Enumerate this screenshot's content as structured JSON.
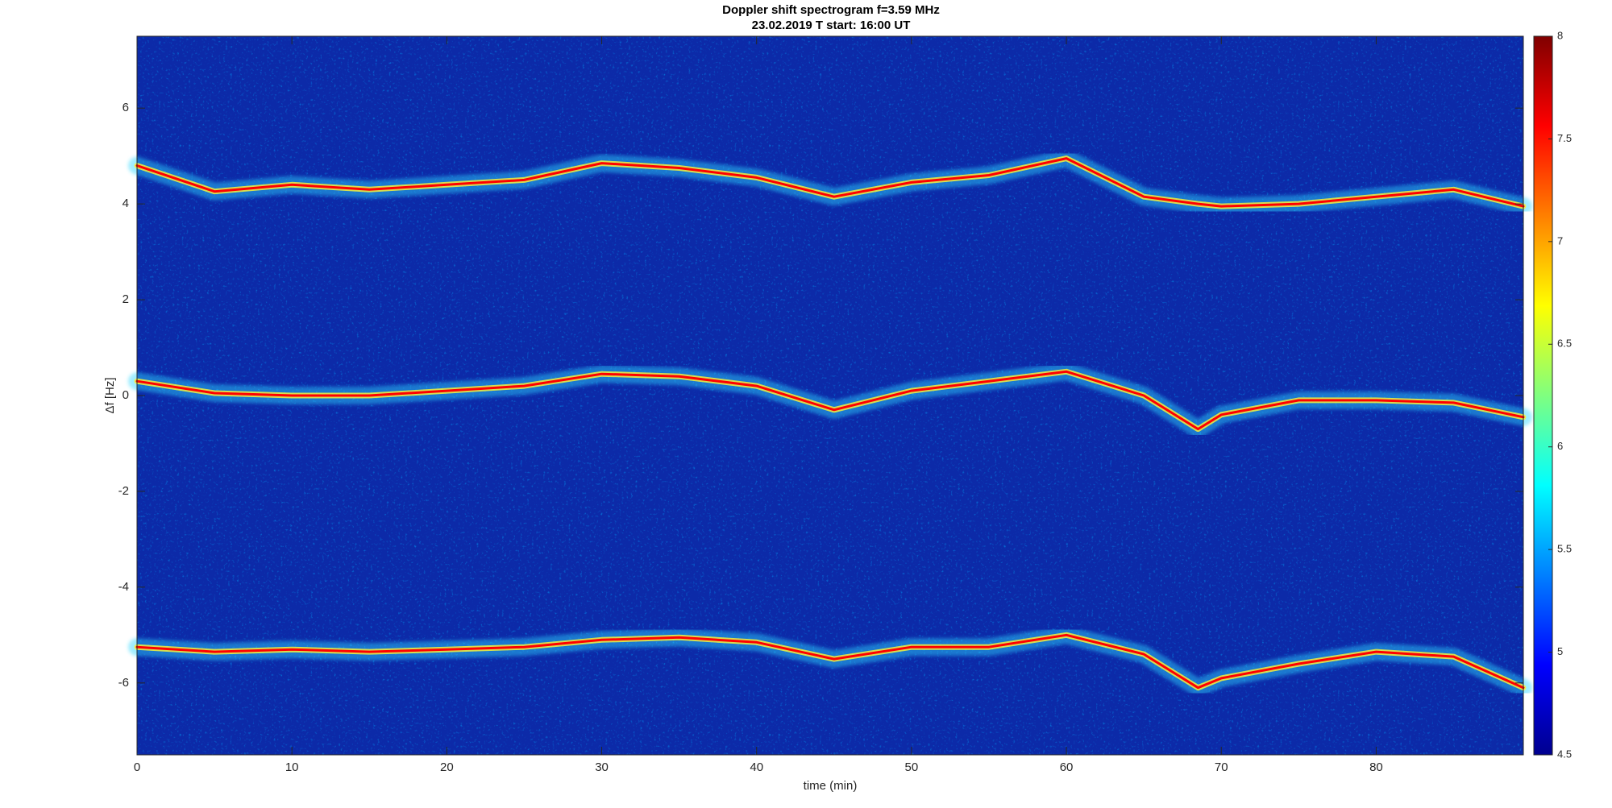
{
  "chart_data": {
    "type": "spectrogram",
    "title": "Doppler shift spectrogram f=3.59 MHz",
    "subtitle": "23.02.2019   T start: 16:00 UT",
    "x_label": "time (min)",
    "y_label": "Δf [Hz]",
    "x": [
      0,
      5,
      10,
      15,
      20,
      25,
      30,
      35,
      40,
      45,
      50,
      55,
      60,
      65,
      68.5,
      70,
      75,
      80,
      85,
      89.5
    ],
    "series": [
      {
        "color": "#ff0000",
        "values": [
          4.8,
          4.26,
          4.4,
          4.3,
          4.4,
          4.5,
          4.85,
          4.75,
          4.55,
          4.15,
          4.45,
          4.6,
          4.95,
          4.15,
          4.0,
          3.95,
          4.0,
          4.15,
          4.3,
          3.95
        ]
      },
      {
        "color": "#ff0000",
        "values": [
          0.3,
          0.05,
          0.0,
          0.0,
          0.1,
          0.2,
          0.45,
          0.4,
          0.2,
          -0.3,
          0.1,
          0.3,
          0.5,
          0.0,
          -0.7,
          -0.4,
          -0.1,
          -0.1,
          -0.15,
          -0.45
        ]
      },
      {
        "color": "#ff0000",
        "values": [
          -5.25,
          -5.35,
          -5.3,
          -5.35,
          -5.3,
          -5.25,
          -5.1,
          -5.05,
          -5.15,
          -5.5,
          -5.25,
          -5.25,
          -5.0,
          -5.4,
          -6.1,
          -5.9,
          -5.6,
          -5.35,
          -5.45,
          -6.1
        ]
      }
    ],
    "xlim": [
      0,
      89.5
    ],
    "ylim": [
      -7.5,
      7.5
    ],
    "xticks": [
      0,
      10,
      20,
      30,
      40,
      50,
      60,
      70,
      80
    ],
    "yticks": [
      -6,
      -4,
      -2,
      0,
      2,
      4,
      6
    ],
    "colormap": "jet",
    "clim": [
      4.5,
      8
    ],
    "cticks": [
      4.5,
      5,
      5.5,
      6,
      6.5,
      7,
      7.5,
      8
    ],
    "background_color": "#0c2aa8"
  }
}
